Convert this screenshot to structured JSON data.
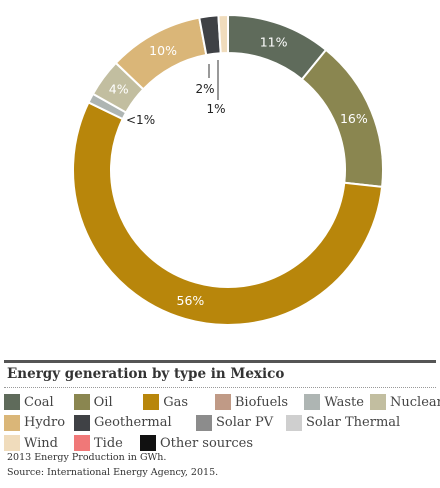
{
  "chart_data": {
    "type": "pie",
    "donut": true,
    "title": "Energy generation by type in Mexico",
    "slices": [
      {
        "name": "Coal",
        "value": 11,
        "label": "11%",
        "color": "#5f6b5b"
      },
      {
        "name": "Oil",
        "value": 16,
        "label": "16%",
        "color": "#8a8650"
      },
      {
        "name": "Gas",
        "value": 56,
        "label": "56%",
        "color": "#b8860b"
      },
      {
        "name": "Waste",
        "value": 1,
        "label": "<1%",
        "color": "#aeb5b3"
      },
      {
        "name": "Nuclear",
        "value": 4,
        "label": "4%",
        "color": "#c2bea0"
      },
      {
        "name": "Hydro",
        "value": 10,
        "label": "10%",
        "color": "#dab678"
      },
      {
        "name": "Geothermal",
        "value": 2,
        "label": "2%",
        "color": "#3f4145"
      },
      {
        "name": "Wind",
        "value": 1,
        "label": "1%",
        "color": "#f0dcbc"
      }
    ],
    "legend": [
      [
        {
          "name": "Coal",
          "color": "#5f6b5b"
        },
        {
          "name": "Oil",
          "color": "#8a8650"
        },
        {
          "name": "Gas",
          "color": "#b8860b"
        },
        {
          "name": "Biofuels",
          "color": "#c09a86"
        },
        {
          "name": "Waste",
          "color": "#aeb5b3"
        },
        {
          "name": "Nuclear",
          "color": "#c2bea0"
        }
      ],
      [
        {
          "name": "Hydro",
          "color": "#dab678"
        },
        {
          "name": "Geothermal",
          "color": "#3f4145"
        },
        {
          "name": "Solar PV",
          "color": "#8c8c8c"
        },
        {
          "name": "Solar Thermal",
          "color": "#cfcfcf"
        }
      ],
      [
        {
          "name": "Wind",
          "color": "#f0dcbc"
        },
        {
          "name": "Tide",
          "color": "#f07878"
        },
        {
          "name": "Other sources",
          "color": "#111111"
        }
      ]
    ],
    "notes": [
      "2013 Energy Production in GWh.",
      "Source: International Energy Agency, 2015."
    ]
  }
}
